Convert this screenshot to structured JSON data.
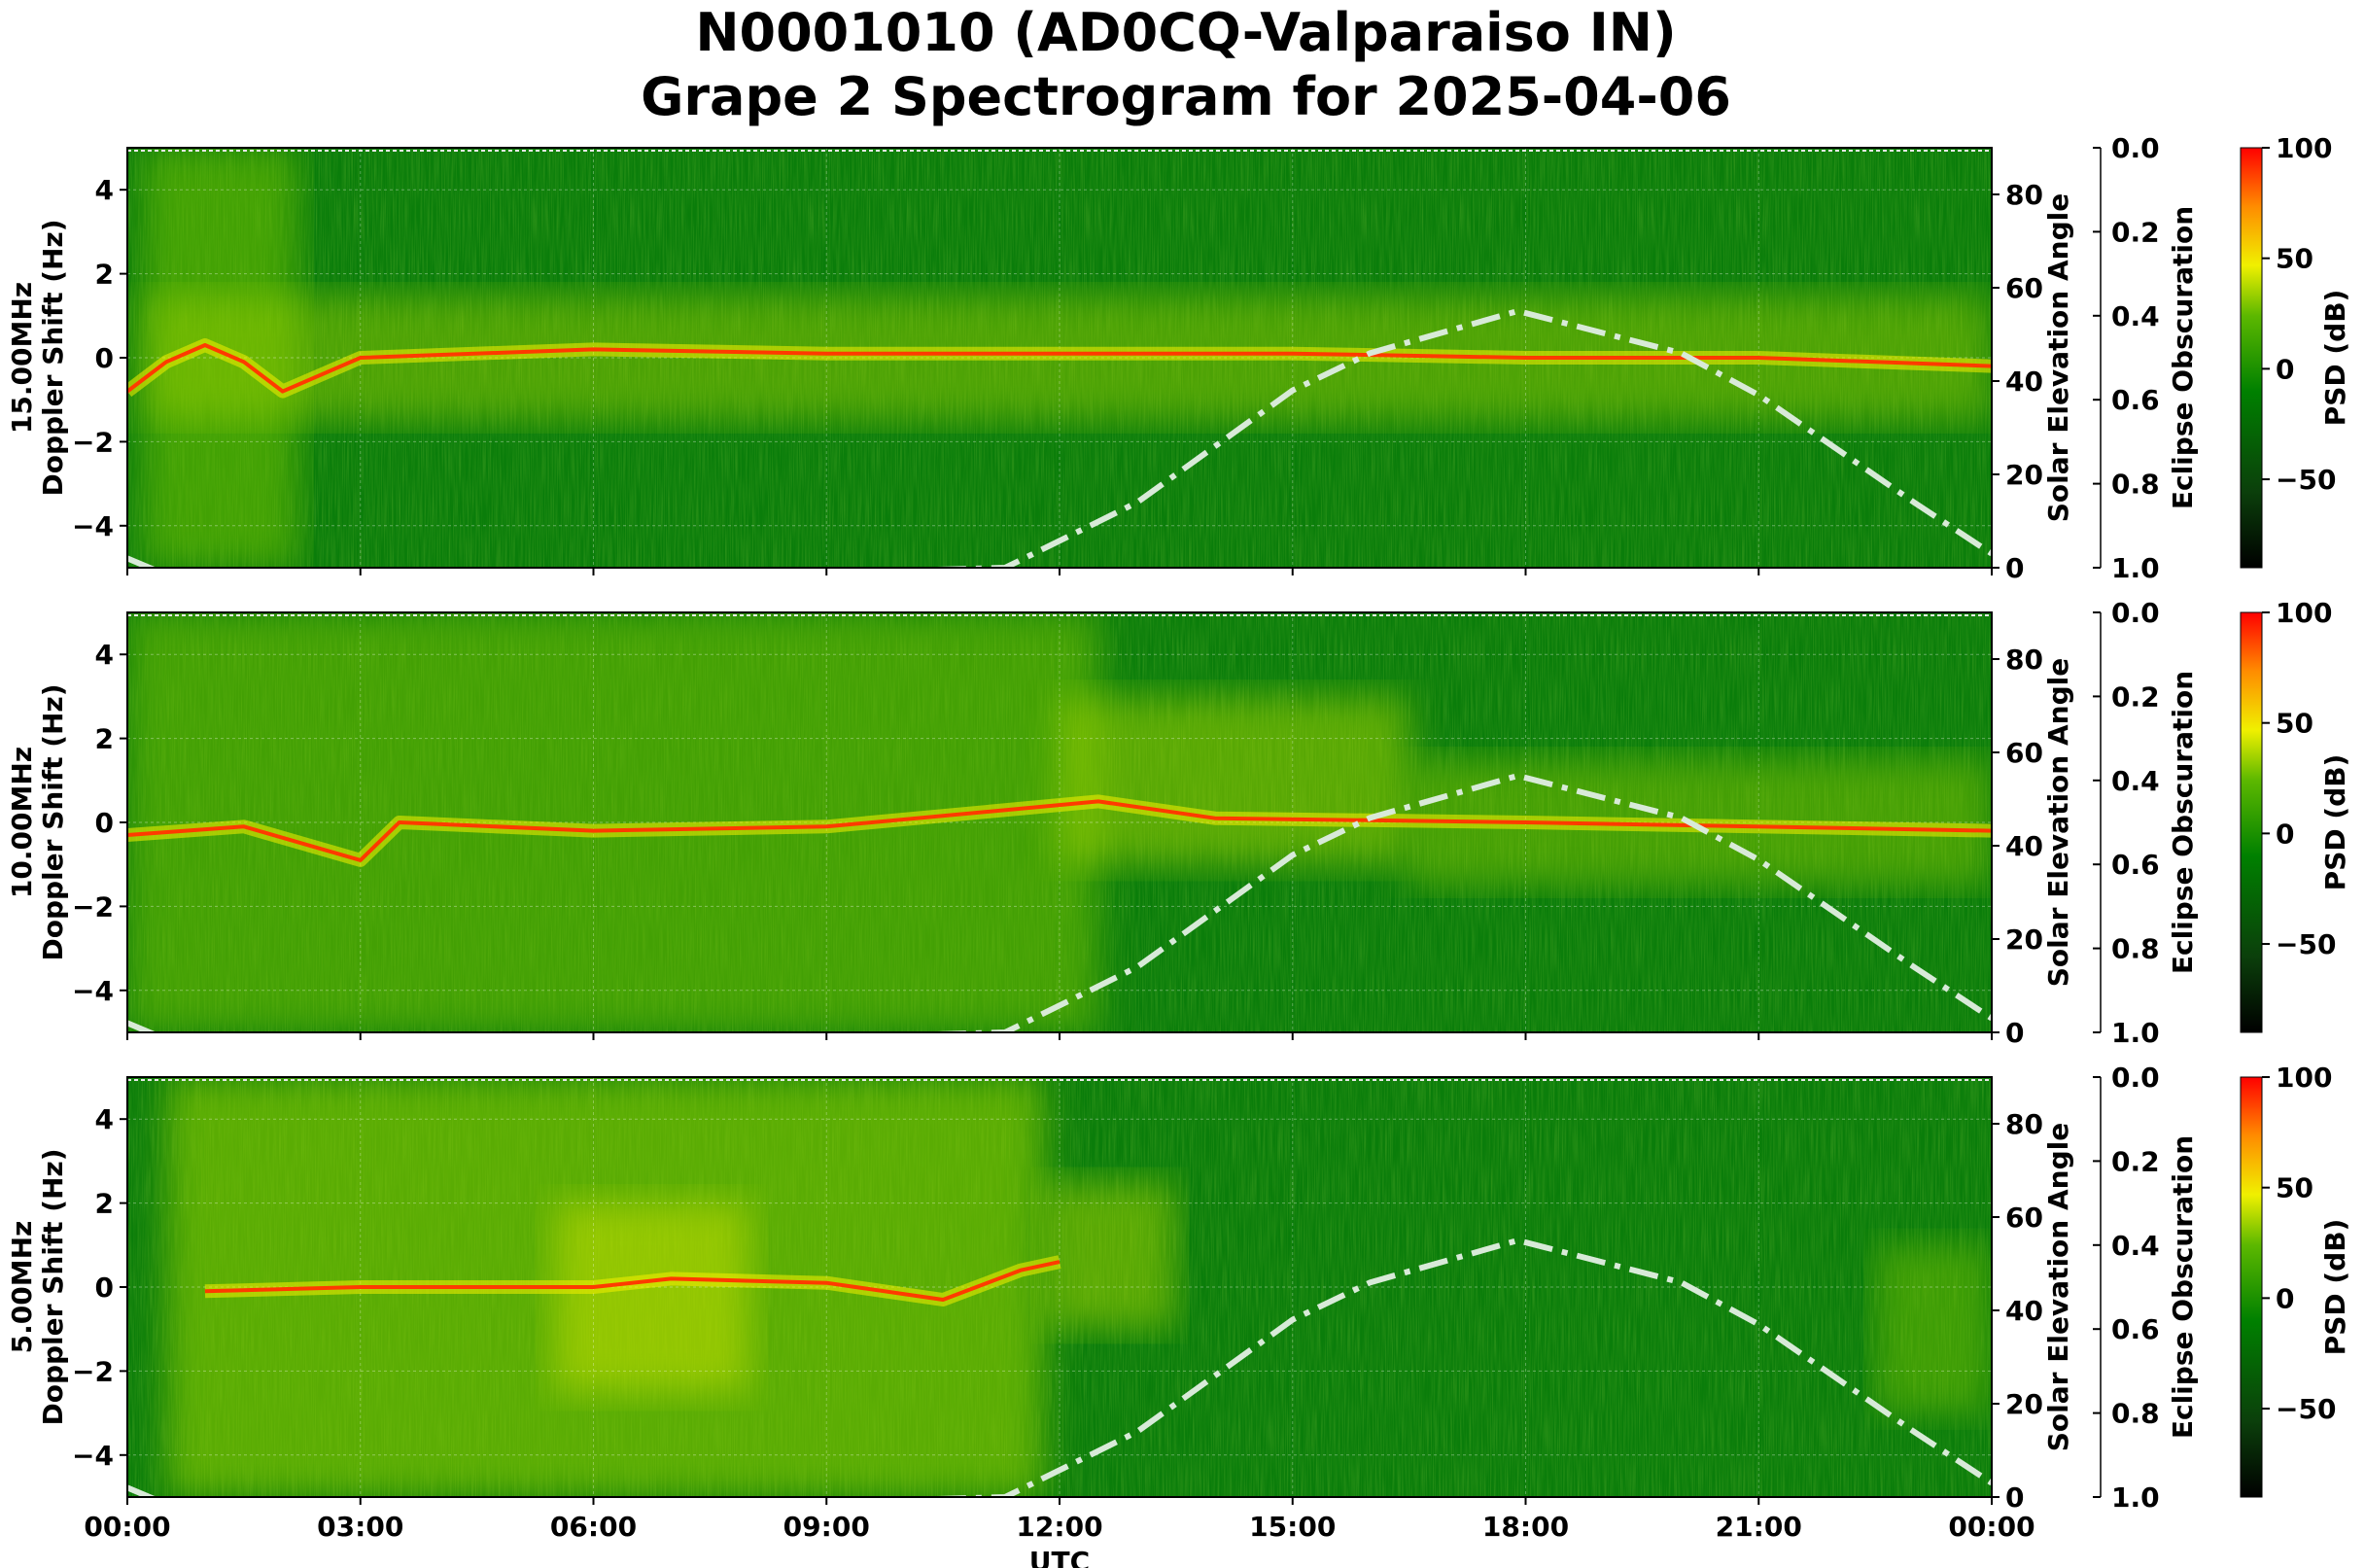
{
  "title_line1": "N0001010 (AD0CQ-Valparaiso IN)",
  "title_line2": "Grape 2 Spectrogram for 2025-04-06",
  "chart_data": [
    {
      "type": "heatmap",
      "subtitle": "15.00MHz",
      "ylabel": "Doppler Shift (Hz)",
      "xlabel": "",
      "xlim": [
        0,
        24
      ],
      "ylim": [
        -5,
        5
      ],
      "yticks": [
        "4",
        "2",
        "0",
        "−2",
        "−4"
      ],
      "elev_ticks": [
        "80",
        "60",
        "40",
        "20",
        "0"
      ],
      "elev_label": "Solar Elevation Angle",
      "obsc_ticks": [
        "0.0",
        "0.2",
        "0.4",
        "0.6",
        "0.8",
        "1.0"
      ],
      "obsc_label": "Eclipse Obscuration",
      "cbar_ticks": [
        "100",
        "50",
        "0",
        "−50"
      ],
      "cbar_label": "PSD (dB)",
      "carrier_trace": [
        [
          0,
          -0.8
        ],
        [
          0.5,
          -0.1
        ],
        [
          1.0,
          0.3
        ],
        [
          1.5,
          -0.1
        ],
        [
          2.0,
          -0.8
        ],
        [
          3,
          0
        ],
        [
          6,
          0.2
        ],
        [
          9,
          0.1
        ],
        [
          12,
          0.1
        ],
        [
          15,
          0.1
        ],
        [
          18,
          0.0
        ],
        [
          21,
          0.0
        ],
        [
          24,
          -0.2
        ]
      ],
      "solar_elevation": [
        [
          0,
          2
        ],
        [
          1,
          -5
        ],
        [
          11.3,
          0
        ],
        [
          13,
          14
        ],
        [
          15,
          38
        ],
        [
          16,
          46
        ],
        [
          17.9,
          55
        ],
        [
          20,
          46
        ],
        [
          21,
          37
        ],
        [
          23,
          14
        ],
        [
          24,
          3
        ]
      ]
    },
    {
      "type": "heatmap",
      "subtitle": "10.00MHz",
      "ylabel": "Doppler Shift (Hz)",
      "xlabel": "",
      "xlim": [
        0,
        24
      ],
      "ylim": [
        -5,
        5
      ],
      "yticks": [
        "4",
        "2",
        "0",
        "−2",
        "−4"
      ],
      "elev_ticks": [
        "80",
        "60",
        "40",
        "20",
        "0"
      ],
      "elev_label": "Solar Elevation Angle",
      "obsc_ticks": [
        "0.0",
        "0.2",
        "0.4",
        "0.6",
        "0.8",
        "1.0"
      ],
      "obsc_label": "Eclipse Obscuration",
      "cbar_ticks": [
        "100",
        "50",
        "0",
        "−50"
      ],
      "cbar_label": "PSD (dB)",
      "carrier_trace": [
        [
          0,
          -0.3
        ],
        [
          1.5,
          -0.1
        ],
        [
          3,
          -0.9
        ],
        [
          3.5,
          0
        ],
        [
          6,
          -0.2
        ],
        [
          9,
          -0.1
        ],
        [
          12.5,
          0.5
        ],
        [
          14,
          0.1
        ],
        [
          18,
          0
        ],
        [
          24,
          -0.2
        ]
      ],
      "solar_elevation": [
        [
          0,
          2
        ],
        [
          1,
          -5
        ],
        [
          11.3,
          0
        ],
        [
          13,
          14
        ],
        [
          15,
          38
        ],
        [
          16,
          46
        ],
        [
          17.9,
          55
        ],
        [
          20,
          46
        ],
        [
          21,
          37
        ],
        [
          23,
          14
        ],
        [
          24,
          3
        ]
      ]
    },
    {
      "type": "heatmap",
      "subtitle": "5.00MHz",
      "ylabel": "Doppler Shift (Hz)",
      "xlabel": "UTC",
      "xlim": [
        0,
        24
      ],
      "ylim": [
        -5,
        5
      ],
      "xticks": [
        "00:00",
        "03:00",
        "06:00",
        "09:00",
        "12:00",
        "15:00",
        "18:00",
        "21:00",
        "00:00"
      ],
      "yticks": [
        "4",
        "2",
        "0",
        "−2",
        "−4"
      ],
      "elev_ticks": [
        "80",
        "60",
        "40",
        "20",
        "0"
      ],
      "elev_label": "Solar Elevation Angle",
      "obsc_ticks": [
        "0.0",
        "0.2",
        "0.4",
        "0.6",
        "0.8",
        "1.0"
      ],
      "obsc_label": "Eclipse Obscuration",
      "cbar_ticks": [
        "100",
        "50",
        "0",
        "−50"
      ],
      "cbar_label": "PSD (dB)",
      "carrier_trace": [
        [
          1,
          -0.1
        ],
        [
          3,
          0
        ],
        [
          6,
          0
        ],
        [
          7,
          0.2
        ],
        [
          9,
          0.1
        ],
        [
          10.5,
          -0.3
        ],
        [
          11.5,
          0.4
        ],
        [
          12,
          0.6
        ]
      ],
      "solar_elevation": [
        [
          0,
          2
        ],
        [
          1,
          -5
        ],
        [
          11.3,
          0
        ],
        [
          13,
          14
        ],
        [
          15,
          38
        ],
        [
          16,
          46
        ],
        [
          17.9,
          55
        ],
        [
          20,
          46
        ],
        [
          21,
          37
        ],
        [
          23,
          14
        ],
        [
          24,
          3
        ]
      ]
    }
  ],
  "colors": {
    "background_green": "#008000",
    "psd_colormap": [
      "#000000",
      "#0a3d0a",
      "#008000",
      "#58b800",
      "#f2f200",
      "#ff8c00",
      "#ff0000"
    ],
    "elevation_curve": "#d8ead8"
  }
}
